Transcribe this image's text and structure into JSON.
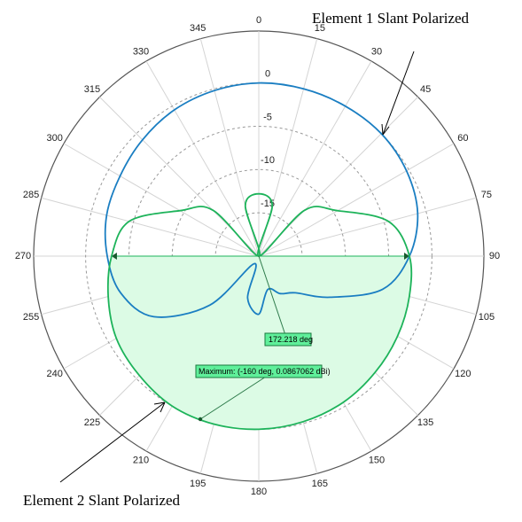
{
  "chart_data": {
    "type": "polar",
    "theta": [
      0,
      15,
      30,
      45,
      60,
      75,
      90,
      105,
      120,
      135,
      150,
      165,
      180,
      195,
      210,
      225,
      240,
      255,
      270,
      285,
      300,
      315,
      330,
      345
    ],
    "rlim": [
      -20,
      6
    ],
    "rticks": [
      -15,
      -10,
      -5,
      0
    ],
    "thetaticks": [
      0,
      15,
      30,
      45,
      60,
      75,
      90,
      105,
      120,
      135,
      150,
      165,
      180,
      195,
      210,
      225,
      240,
      255,
      270,
      285,
      300,
      315,
      330,
      345
    ],
    "series": [
      {
        "name": "Element 1 Slant Polarized",
        "color": "#1a7ec2",
        "values": [
          0,
          0,
          0,
          0,
          -0.3,
          -1,
          -2.6,
          -5.2,
          -10.5,
          -14,
          -15,
          -16,
          -13.3,
          -15,
          -19,
          -12,
          -6,
          -3.5,
          -2.5,
          -1.8,
          -1.5,
          -1,
          -0.5,
          -0.2
        ]
      },
      {
        "name": "Element 2 Slant Polarized",
        "color": "#1db35a",
        "values": [
          -12.8,
          -14,
          -20,
          -12.5,
          -9.5,
          -4.5,
          -2.6,
          -2,
          -1.5,
          -1,
          -0.5,
          -0.2,
          0,
          0.08,
          0,
          -0.5,
          -1,
          -2,
          -3,
          -4.5,
          -9.5,
          -12.5,
          -20,
          -14
        ]
      }
    ],
    "annotations": [
      "172.218 deg",
      "Maximum: (-160 deg, 0.0867062 dBi)"
    ]
  }
}
